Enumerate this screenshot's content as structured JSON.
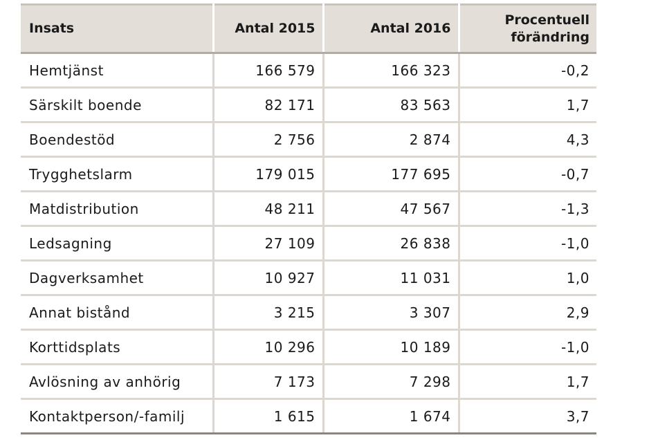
{
  "table": {
    "headers": {
      "insats": "Insats",
      "antal_2015": "Antal 2015",
      "antal_2016": "Antal 2016",
      "forandring_line1": "Procentuell",
      "forandring_line2": "förändring"
    },
    "rows": [
      {
        "insats": "Hemtjänst",
        "antal_2015": "166 579",
        "antal_2016": "166 323",
        "forandring": "-0,2"
      },
      {
        "insats": "Särskilt boende",
        "antal_2015": "82 171",
        "antal_2016": "83 563",
        "forandring": "1,7"
      },
      {
        "insats": "Boendestöd",
        "antal_2015": "2 756",
        "antal_2016": "2 874",
        "forandring": "4,3"
      },
      {
        "insats": "Trygghetslarm",
        "antal_2015": "179 015",
        "antal_2016": "177 695",
        "forandring": "-0,7"
      },
      {
        "insats": "Matdistribution",
        "antal_2015": "48 211",
        "antal_2016": "47 567",
        "forandring": "-1,3"
      },
      {
        "insats": "Ledsagning",
        "antal_2015": "27 109",
        "antal_2016": "26 838",
        "forandring": "-1,0"
      },
      {
        "insats": "Dagverksamhet",
        "antal_2015": "10 927",
        "antal_2016": "11 031",
        "forandring": "1,0"
      },
      {
        "insats": "Annat bistånd",
        "antal_2015": "3 215",
        "antal_2016": "3 307",
        "forandring": "2,9"
      },
      {
        "insats": "Korttidsplats",
        "antal_2015": "10 296",
        "antal_2016": "10 189",
        "forandring": "-1,0"
      },
      {
        "insats": "Avlösning av anhörig",
        "antal_2015": "7 173",
        "antal_2016": "7 298",
        "forandring": "1,7"
      },
      {
        "insats": "Kontaktperson/-familj",
        "antal_2015": "1 615",
        "antal_2016": "1 674",
        "forandring": "3,7"
      }
    ]
  },
  "colors": {
    "header_bg": "#e3ded8",
    "grid_line": "#ddd7cf",
    "bottom_rule": "#8c857c"
  }
}
